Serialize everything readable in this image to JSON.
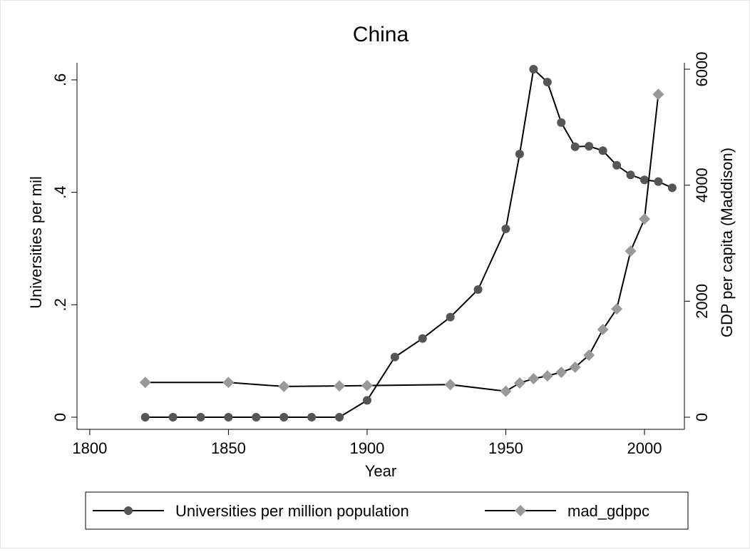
{
  "chart_data": {
    "type": "line",
    "title": "China",
    "x_label": "Year",
    "y_label": "Universities per mil",
    "y2_label": "GDP per capita (Maddison)",
    "xlim": [
      1795.4,
      2014.4
    ],
    "xticks": [
      1800,
      1850,
      1900,
      1950,
      2000
    ],
    "ylim": [
      -0.0216,
      0.6304
    ],
    "yticks": [
      0,
      {
        "value": 0.2,
        "label": ".2"
      },
      {
        "value": 0.4,
        "label": ".4"
      },
      {
        "value": 0.6,
        "label": ".6"
      }
    ],
    "y2lim": [
      -209,
      6111
    ],
    "y2ticks": [
      0,
      2000,
      4000,
      6000
    ],
    "legend": "bottom",
    "series": [
      {
        "name": "Universities per million population",
        "color": "#555555",
        "marker": "circle",
        "x": [
          1820,
          1830,
          1840,
          1850,
          1860,
          1870,
          1880,
          1890,
          1900,
          1910,
          1920,
          1930,
          1940,
          1950,
          1955,
          1960,
          1965,
          1970,
          1975,
          1980,
          1985,
          1990,
          1995,
          2000,
          2005,
          2010
        ],
        "values": [
          0,
          0,
          0,
          0,
          0,
          0,
          0,
          0,
          0.03,
          0.107,
          0.14,
          0.178,
          0.227,
          0.335,
          0.468,
          0.619,
          0.596,
          0.524,
          0.481,
          0.482,
          0.474,
          0.448,
          0.431,
          0.422,
          0.419,
          0.408
        ]
      },
      {
        "name": "mad_gdppc",
        "color": "#999999",
        "marker": "diamond",
        "axis": "y2",
        "x": [
          1820,
          1850,
          1870,
          1890,
          1900,
          1930,
          1950,
          1955,
          1960,
          1965,
          1970,
          1975,
          1980,
          1985,
          1990,
          1995,
          2000,
          2005
        ],
        "values": [
          600,
          600,
          530,
          540,
          545,
          562,
          448,
          590,
          664,
          713,
          775,
          862,
          1070,
          1512,
          1868,
          2864,
          3417,
          5567
        ]
      }
    ]
  }
}
